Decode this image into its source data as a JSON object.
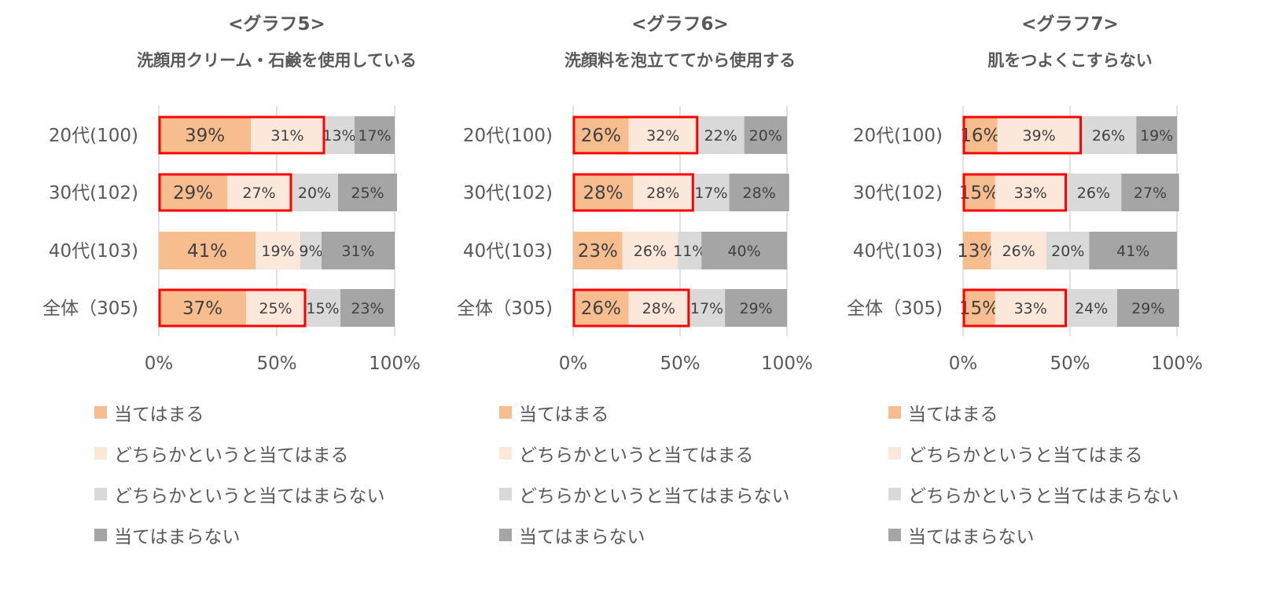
{
  "colors": {
    "a": "#F8BD8F",
    "b": "#FCE7DB",
    "c": "#D9D9D9",
    "d": "#A5A5A5",
    "highlight": "#FF0000",
    "title_text": "#595959",
    "axis_text": "#595959",
    "grid": "#D9D9D9"
  },
  "legend_labels": [
    "当てはまる",
    "どちらかというと当てはまる",
    "どちらかというと当てはまらない",
    "当てはまらない"
  ],
  "chart_data": [
    {
      "type": "bar",
      "orientation": "horizontal",
      "stacked": "percent",
      "title": "<グラフ5>",
      "subtitle": "洗顔用クリーム・石鹸を使用している",
      "categories": [
        "20代(100)",
        "30代(102)",
        "40代(103)",
        "全体（305)"
      ],
      "xlim": [
        0,
        100
      ],
      "xticks": [
        "0%",
        "50%",
        "100%"
      ],
      "grid": true,
      "legend_position": "bottom",
      "series": [
        {
          "name": "当てはまる",
          "values": [
            39,
            29,
            41,
            37
          ],
          "labels": [
            "39%",
            "29%",
            "41%",
            "37%"
          ]
        },
        {
          "name": "どちらかというと当てはまる",
          "values": [
            31,
            27,
            19,
            25
          ],
          "labels": [
            "31%",
            "27%",
            "19%",
            "25%"
          ]
        },
        {
          "name": "どちらかというと当てはまらない",
          "values": [
            13,
            20,
            9,
            15
          ],
          "labels": [
            "13%",
            "20%",
            "9%",
            "15%"
          ]
        },
        {
          "name": "当てはまらない",
          "values": [
            17,
            25,
            31,
            23
          ],
          "labels": [
            "17%",
            "25%",
            "31%",
            "23%"
          ]
        }
      ],
      "highlighted_rows": [
        0,
        1,
        3
      ]
    },
    {
      "type": "bar",
      "orientation": "horizontal",
      "stacked": "percent",
      "title": "<グラフ6>",
      "subtitle": "洗顔料を泡立ててから使用する",
      "categories": [
        "20代(100)",
        "30代(102)",
        "40代(103)",
        "全体（305)"
      ],
      "xlim": [
        0,
        100
      ],
      "xticks": [
        "0%",
        "50%",
        "100%"
      ],
      "grid": true,
      "legend_position": "bottom",
      "series": [
        {
          "name": "当てはまる",
          "values": [
            26,
            28,
            23,
            26
          ],
          "labels": [
            "26%",
            "28%",
            "23%",
            "26%"
          ]
        },
        {
          "name": "どちらかというと当てはまる",
          "values": [
            32,
            28,
            26,
            28
          ],
          "labels": [
            "32%",
            "28%",
            "26%",
            "28%"
          ]
        },
        {
          "name": "どちらかというと当てはまらない",
          "values": [
            22,
            17,
            11,
            17
          ],
          "labels": [
            "22%",
            "17%",
            "11%",
            "17%"
          ]
        },
        {
          "name": "当てはまらない",
          "values": [
            20,
            28,
            40,
            29
          ],
          "labels": [
            "20%",
            "28%",
            "40%",
            "29%"
          ]
        }
      ],
      "highlighted_rows": [
        0,
        1,
        3
      ]
    },
    {
      "type": "bar",
      "orientation": "horizontal",
      "stacked": "percent",
      "title": "<グラフ7>",
      "subtitle": "肌をつよくこすらない",
      "categories": [
        "20代(100)",
        "30代(102)",
        "40代(103)",
        "全体（305)"
      ],
      "xlim": [
        0,
        100
      ],
      "xticks": [
        "0%",
        "50%",
        "100%"
      ],
      "grid": true,
      "legend_position": "bottom",
      "series": [
        {
          "name": "当てはまる",
          "values": [
            16,
            15,
            13,
            15
          ],
          "labels": [
            "16%",
            "15%",
            "13%",
            "15%"
          ]
        },
        {
          "name": "どちらかというと当てはまる",
          "values": [
            39,
            33,
            26,
            33
          ],
          "labels": [
            "39%",
            "33%",
            "26%",
            "33%"
          ]
        },
        {
          "name": "どちらかというと当てはまらない",
          "values": [
            26,
            26,
            20,
            24
          ],
          "labels": [
            "26%",
            "26%",
            "20%",
            "24%"
          ]
        },
        {
          "name": "当てはまらない",
          "values": [
            19,
            27,
            41,
            29
          ],
          "labels": [
            "19%",
            "27%",
            "41%",
            "29%"
          ]
        }
      ],
      "highlighted_rows": [
        0,
        1,
        3
      ]
    }
  ]
}
